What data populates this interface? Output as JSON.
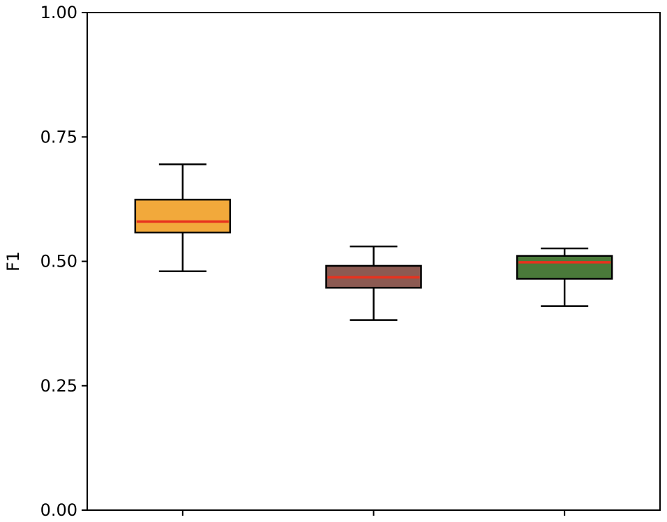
{
  "chart_data": {
    "type": "box",
    "title": "",
    "xlabel": "",
    "ylabel": "F1",
    "ylim": [
      0,
      1
    ],
    "yticks": [
      "0.00",
      "0.25",
      "0.50",
      "0.75",
      "1.00"
    ],
    "grid": false,
    "legend": "none",
    "median_color": "#e8321e",
    "boxes": [
      {
        "whisker_low": 0.48,
        "q1": 0.558,
        "median": 0.58,
        "q3": 0.624,
        "whisker_high": 0.695,
        "color": "#f2a93b"
      },
      {
        "whisker_low": 0.382,
        "q1": 0.447,
        "median": 0.468,
        "q3": 0.491,
        "whisker_high": 0.53,
        "color": "#8c5a52"
      },
      {
        "whisker_low": 0.41,
        "q1": 0.465,
        "median": 0.498,
        "q3": 0.511,
        "whisker_high": 0.526,
        "color": "#4a7a3a"
      }
    ]
  }
}
